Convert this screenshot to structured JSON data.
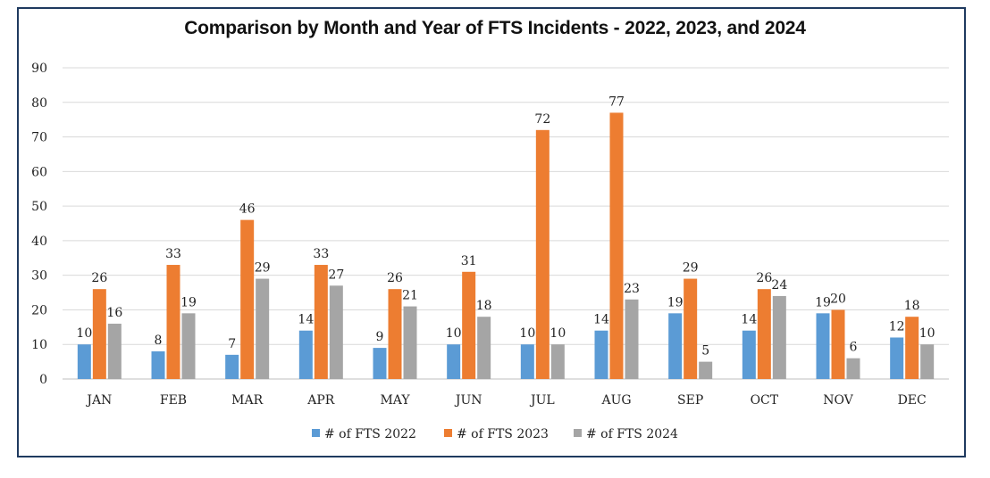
{
  "chart_data": {
    "type": "bar",
    "title": "Comparison by Month and Year of FTS Incidents - 2022, 2023, and 2024",
    "xlabel": "",
    "ylabel": "",
    "ylim": [
      0,
      90
    ],
    "yticks": [
      0,
      10,
      20,
      30,
      40,
      50,
      60,
      70,
      80,
      90
    ],
    "grid": true,
    "legend_position": "bottom",
    "categories": [
      "JAN",
      "FEB",
      "MAR",
      "APR",
      "MAY",
      "JUN",
      "JUL",
      "AUG",
      "SEP",
      "OCT",
      "NOV",
      "DEC"
    ],
    "series": [
      {
        "name": "# of FTS 2022",
        "color": "#5b9bd5",
        "values": [
          10,
          8,
          7,
          14,
          9,
          10,
          10,
          14,
          19,
          14,
          19,
          12
        ]
      },
      {
        "name": "# of FTS 2023",
        "color": "#ed7d31",
        "values": [
          26,
          33,
          46,
          33,
          26,
          31,
          72,
          77,
          29,
          26,
          20,
          18
        ]
      },
      {
        "name": "# of FTS 2024",
        "color": "#a5a5a5",
        "values": [
          16,
          19,
          29,
          27,
          21,
          18,
          10,
          23,
          5,
          24,
          6,
          10
        ]
      }
    ]
  }
}
